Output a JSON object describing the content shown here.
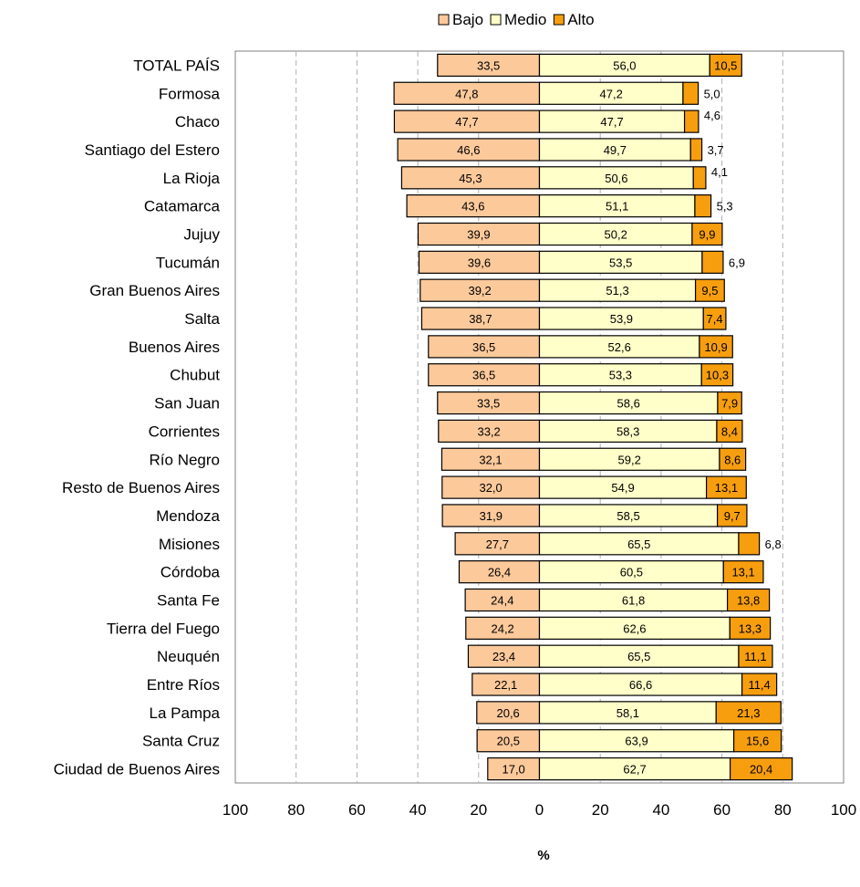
{
  "chart_data": {
    "type": "bar",
    "orientation": "horizontal-diverging",
    "xlabel": "%",
    "xlim": [
      -100,
      100
    ],
    "x_ticks": [
      -100,
      -80,
      -60,
      -40,
      -20,
      0,
      20,
      40,
      60,
      80,
      100
    ],
    "x_tick_labels": [
      "100",
      "80",
      "60",
      "40",
      "20",
      "0",
      "20",
      "40",
      "60",
      "80",
      "100"
    ],
    "grid": "vertical-dashed",
    "legend_position": "top-center",
    "categories": [
      "TOTAL PAÍS",
      "Formosa",
      "Chaco",
      "Santiago del Estero",
      "La Rioja",
      "Catamarca",
      "Jujuy",
      "Tucumán",
      "Gran Buenos Aires",
      "Salta",
      "Buenos Aires",
      "Chubut",
      "San Juan",
      "Corrientes",
      "Río Negro",
      "Resto de Buenos Aires",
      "Mendoza",
      "Misiones",
      "Córdoba",
      "Santa Fe",
      "Tierra del Fuego",
      "Neuquén",
      "Entre Ríos",
      "La Pampa",
      "Santa Cruz",
      "Ciudad de Buenos Aires"
    ],
    "series": [
      {
        "name": "Bajo",
        "color": "#fcc99b",
        "direction": "left",
        "values": [
          33.5,
          47.8,
          47.7,
          46.6,
          45.3,
          43.6,
          39.9,
          39.6,
          39.2,
          38.7,
          36.5,
          36.5,
          33.5,
          33.2,
          32.1,
          32.0,
          31.9,
          27.7,
          26.4,
          24.4,
          24.2,
          23.4,
          22.1,
          20.6,
          20.5,
          17.0
        ],
        "labels": [
          "33,5",
          "47,8",
          "47,7",
          "46,6",
          "45,3",
          "43,6",
          "39,9",
          "39,6",
          "39,2",
          "38,7",
          "36,5",
          "36,5",
          "33,5",
          "33,2",
          "32,1",
          "32,0",
          "31,9",
          "27,7",
          "26,4",
          "24,4",
          "24,2",
          "23,4",
          "22,1",
          "20,6",
          "20,5",
          "17,0"
        ]
      },
      {
        "name": "Medio",
        "color": "#ffffc9",
        "direction": "right",
        "values": [
          56.0,
          47.2,
          47.7,
          49.7,
          50.6,
          51.1,
          50.2,
          53.5,
          51.3,
          53.9,
          52.6,
          53.3,
          58.6,
          58.3,
          59.2,
          54.9,
          58.5,
          65.5,
          60.5,
          61.8,
          62.6,
          65.5,
          66.6,
          58.1,
          63.9,
          62.7
        ],
        "labels": [
          "56,0",
          "47,2",
          "47,7",
          "49,7",
          "50,6",
          "51,1",
          "50,2",
          "53,5",
          "51,3",
          "53,9",
          "52,6",
          "53,3",
          "58,6",
          "58,3",
          "59,2",
          "54,9",
          "58,5",
          "65,5",
          "60,5",
          "61,8",
          "62,6",
          "65,5",
          "66,6",
          "58,1",
          "63,9",
          "62,7"
        ]
      },
      {
        "name": "Alto",
        "color": "#f79e0f",
        "direction": "right",
        "values": [
          10.5,
          5.0,
          4.6,
          3.7,
          4.1,
          5.3,
          9.9,
          6.9,
          9.5,
          7.4,
          10.9,
          10.3,
          7.9,
          8.4,
          8.6,
          13.1,
          9.7,
          6.8,
          13.1,
          13.8,
          13.3,
          11.1,
          11.4,
          21.3,
          15.6,
          20.4
        ],
        "labels": [
          "10,5",
          "5,0",
          "4,6",
          "3,7",
          "4,1",
          "5,3",
          "9,9",
          "6,9",
          "9,5",
          "7,4",
          "10,9",
          "10,3",
          "7,9",
          "8,4",
          "8,6",
          "13,1",
          "9,7",
          "6,8",
          "13,1",
          "13,8",
          "13,3",
          "11,1",
          "11,4",
          "21,3",
          "15,6",
          "20,4"
        ]
      }
    ]
  }
}
